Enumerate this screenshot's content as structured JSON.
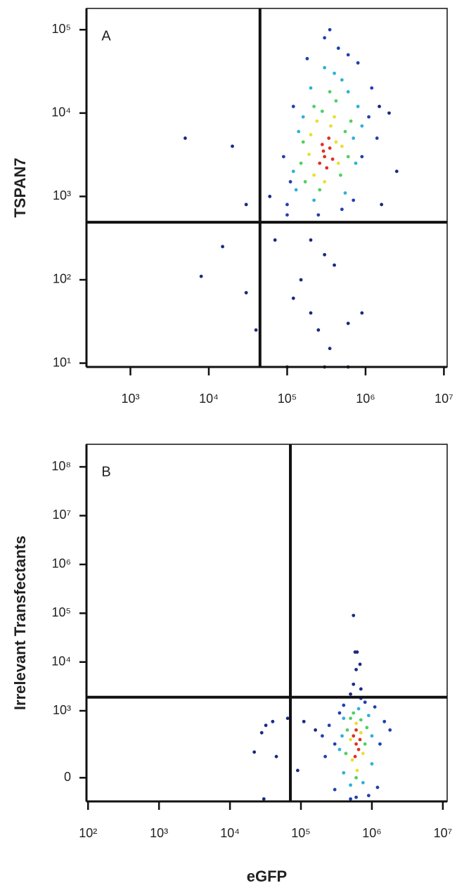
{
  "chart_data": [
    {
      "type": "scatter",
      "panel_label": "A",
      "ylabel": "TSPAN7",
      "xscale": "log",
      "yscale": "log",
      "xlim": [
        275,
        11000000
      ],
      "ylim": [
        9,
        180000
      ],
      "xticks": [
        {
          "value": 1000,
          "label": "10³"
        },
        {
          "value": 10000,
          "label": "10⁴"
        },
        {
          "value": 100000,
          "label": "10⁵"
        },
        {
          "value": 1000000,
          "label": "10⁶"
        },
        {
          "value": 10000000,
          "label": "10⁷"
        }
      ],
      "yticks": [
        {
          "value": 10,
          "label": "10¹"
        },
        {
          "value": 100,
          "label": "10²"
        },
        {
          "value": 1000,
          "label": "10³"
        },
        {
          "value": 10000,
          "label": "10⁴"
        },
        {
          "value": 100000,
          "label": "10⁵"
        }
      ],
      "gates": {
        "x": 45000,
        "y": 490
      },
      "series": [
        {
          "color": "#1a2a80",
          "x": [
            60000,
            30000,
            5000,
            20000,
            15000,
            8000,
            200000,
            300000,
            150000,
            400000,
            200000,
            120000,
            250000,
            350000,
            600000,
            900000,
            1600000,
            2500000,
            1500000,
            70000,
            30000,
            40000,
            100000,
            300000,
            600000,
            2000000
          ],
          "values": [
            1000,
            800,
            5000,
            4000,
            250,
            110,
            300,
            200,
            100,
            150,
            40,
            60,
            25,
            15,
            30,
            40,
            800,
            2000,
            12000,
            300,
            70,
            25,
            9,
            9,
            9,
            10000
          ]
        },
        {
          "color": "#2040b0",
          "x": [
            100000,
            110000,
            900000,
            1100000,
            180000,
            450000,
            300000,
            600000,
            120000,
            1400000,
            250000,
            700000,
            1200000,
            90000,
            100000,
            500000,
            350000,
            800000
          ],
          "values": [
            800,
            1500,
            3000,
            9000,
            45000,
            60000,
            80000,
            50000,
            12000,
            5000,
            600,
            900,
            20000,
            3000,
            600,
            700,
            100000,
            40000
          ]
        },
        {
          "color": "#30b0d8",
          "x": [
            130000,
            700000,
            200000,
            500000,
            140000,
            800000,
            220000,
            400000,
            120000,
            750000,
            600000,
            300000,
            160000,
            900000,
            550000
          ],
          "values": [
            1200,
            5000,
            20000,
            25000,
            6000,
            12000,
            900,
            30000,
            2000,
            2500,
            18000,
            35000,
            9000,
            7000,
            1100
          ]
        },
        {
          "color": "#50d060",
          "x": [
            170000,
            550000,
            220000,
            420000,
            160000,
            600000,
            260000,
            350000,
            150000,
            650000,
            480000,
            280000
          ],
          "values": [
            1500,
            6000,
            12000,
            14000,
            4500,
            3000,
            1200,
            18000,
            2500,
            8000,
            1800,
            10500
          ]
        },
        {
          "color": "#e8e030",
          "x": [
            220000,
            420000,
            200000,
            360000,
            450000,
            240000,
            300000,
            400000,
            190000,
            500000
          ],
          "values": [
            1800,
            4500,
            5500,
            7000,
            2500,
            8000,
            1500,
            9000,
            3200,
            4000
          ]
        },
        {
          "color": "#e03020",
          "x": [
            300000,
            260000,
            350000,
            280000,
            380000,
            320000,
            290000,
            340000
          ],
          "values": [
            3000,
            2500,
            3800,
            4200,
            2800,
            2200,
            3500,
            5000
          ]
        }
      ]
    },
    {
      "type": "scatter",
      "panel_label": "B",
      "ylabel": "Irrelevant Transfectants",
      "xlabel": "eGFP",
      "xscale": "log",
      "yscale": "asinh",
      "xlim": [
        95,
        11500000
      ],
      "ylim": [
        -116,
        290000000
      ],
      "xticks": [
        {
          "value": 100,
          "label": "10²"
        },
        {
          "value": 1000,
          "label": "10³"
        },
        {
          "value": 10000,
          "label": "10⁴"
        },
        {
          "value": 100000,
          "label": "10⁵"
        },
        {
          "value": 1000000,
          "label": "10⁶"
        },
        {
          "value": 10000000,
          "label": "10⁷"
        }
      ],
      "yticks": [
        0,
        {
          "value": 1000,
          "label": "10³"
        },
        {
          "value": 10000,
          "label": "10⁴"
        },
        {
          "value": 100000,
          "label": "10⁵"
        },
        {
          "value": 1000000,
          "label": "10⁶"
        },
        {
          "value": 10000000,
          "label": "10⁷"
        },
        {
          "value": 100000000,
          "label": "10⁸"
        }
      ],
      "gates": {
        "x": 71000,
        "y": 1900
      },
      "series": [
        {
          "color": "#1a2a80",
          "x": [
            550000,
            580000,
            620000,
            680000,
            600000,
            550000,
            700000,
            500000,
            32000,
            40000,
            65000,
            110000,
            160000,
            28000,
            22000,
            45000,
            90000,
            30000
          ],
          "values": [
            90000,
            16000,
            16000,
            9000,
            7000,
            3500,
            2800,
            2200,
            500,
            600,
            700,
            600,
            400,
            350,
            130,
            100,
            30,
            -100
          ]
        },
        {
          "color": "#2040b0",
          "x": [
            300000,
            1300000,
            250000,
            1500000,
            300000,
            1200000,
            600000,
            400000,
            800000,
            220000,
            1800000,
            350000,
            1100000,
            500000,
            900000,
            200000,
            700000
          ],
          "values": [
            200,
            200,
            500,
            600,
            -50,
            -40,
            -90,
            1300,
            1500,
            100,
            400,
            900,
            1200,
            -100,
            -80,
            300,
            1800
          ]
        },
        {
          "color": "#30b0d8",
          "x": [
            380000,
            1000000,
            400000,
            900000,
            400000,
            1000000,
            650000,
            500000,
            750000,
            350000
          ],
          "values": [
            300,
            300,
            700,
            800,
            20,
            60,
            1100,
            -30,
            -20,
            150
          ]
        },
        {
          "color": "#50d060",
          "x": [
            450000,
            800000,
            500000,
            700000,
            430000,
            850000,
            600000,
            550000
          ],
          "values": [
            400,
            200,
            700,
            650,
            120,
            450,
            0,
            900
          ]
        },
        {
          "color": "#e8e030",
          "x": [
            500000,
            700000,
            600000,
            530000,
            750000,
            620000
          ],
          "values": [
            250,
            350,
            550,
            80,
            120,
            30
          ]
        },
        {
          "color": "#e03020",
          "x": [
            600000,
            550000,
            650000,
            600000,
            580000,
            680000
          ],
          "values": [
            200,
            300,
            150,
            400,
            100,
            250
          ]
        }
      ]
    }
  ]
}
